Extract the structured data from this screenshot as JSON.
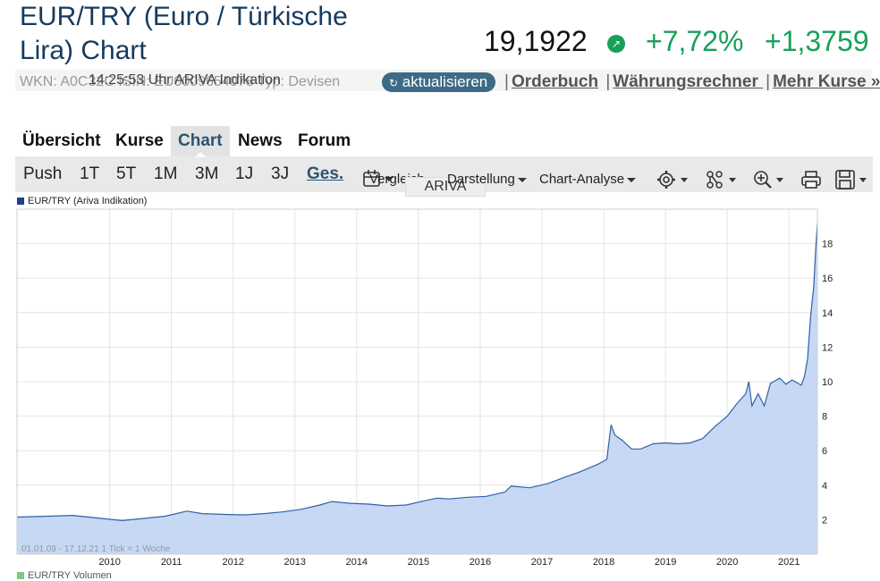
{
  "header": {
    "title": "EUR/TRY (Euro / Türkische Lira) Chart",
    "price": "19,1922",
    "change_pct": "+7,72%",
    "change_abs": "+1,3759",
    "accent_green": "#18a05a",
    "title_color": "#163a5c"
  },
  "infobar": {
    "wkn_text": "WKN: A0C32C ISIN: EU0009654078 Typ: Devisen",
    "time_text": "14:25:53 Uhr ARIVA Indikation",
    "refresh_label": "aktualisieren",
    "links": [
      "Orderbuch",
      "Währungsrechner ",
      "Mehr Kurse »"
    ]
  },
  "tabs": [
    "Übersicht",
    "Kurse",
    "Chart",
    "News",
    "Forum"
  ],
  "toolbar": {
    "ranges": [
      "Push",
      "1T",
      "5T",
      "1M",
      "3M",
      "1J",
      "3J",
      "Ges."
    ],
    "active_range": "Ges.",
    "vergleich": "Vergleich",
    "darstellung": "Darstellung",
    "analyse": "Chart-Analyse",
    "source_tag": "ARIVA"
  },
  "chart_legend": {
    "top": "EUR/TRY (Ariva Indikation)",
    "bottom": "EUR/TRY Volumen",
    "period": "01.01.09 - 17.12.21",
    "tick": "1 Tick = 1 Woche"
  },
  "chart_data": {
    "type": "area",
    "series": [
      {
        "name": "EUR/TRY (Ariva Indikation)",
        "x": [
          2009.0,
          2009.5,
          2009.9,
          2010.3,
          2010.7,
          2011.0,
          2011.4,
          2011.75,
          2012.0,
          2012.4,
          2012.7,
          2013.0,
          2013.3,
          2013.6,
          2013.9,
          2014.1,
          2014.4,
          2014.7,
          2015.0,
          2015.3,
          2015.6,
          2015.8,
          2016.0,
          2016.3,
          2016.6,
          2016.9,
          2017.0,
          2017.3,
          2017.6,
          2017.9,
          2018.1,
          2018.4,
          2018.55,
          2018.62,
          2018.68,
          2018.8,
          2018.95,
          2019.1,
          2019.3,
          2019.5,
          2019.7,
          2019.9,
          2020.1,
          2020.3,
          2020.5,
          2020.65,
          2020.8,
          2020.85,
          2020.9,
          2021.0,
          2021.1,
          2021.2,
          2021.35,
          2021.45,
          2021.55,
          2021.7,
          2021.75,
          2021.8,
          2021.85,
          2021.9,
          2021.93,
          2021.96
        ],
        "values": [
          2.15,
          2.2,
          2.25,
          2.1,
          1.95,
          2.05,
          2.2,
          2.5,
          2.35,
          2.3,
          2.28,
          2.35,
          2.45,
          2.6,
          2.85,
          3.05,
          2.95,
          2.9,
          2.8,
          2.85,
          3.1,
          3.25,
          3.2,
          3.3,
          3.35,
          3.6,
          3.95,
          3.85,
          4.1,
          4.5,
          4.75,
          5.2,
          5.5,
          7.5,
          6.9,
          6.6,
          6.1,
          6.1,
          6.4,
          6.45,
          6.4,
          6.45,
          6.7,
          7.4,
          8.0,
          8.7,
          9.3,
          10.0,
          8.6,
          9.3,
          8.6,
          9.9,
          10.2,
          9.85,
          10.1,
          9.8,
          10.3,
          11.3,
          13.8,
          15.5,
          17.5,
          19.19
        ]
      }
    ],
    "xlim": [
      2009.0,
      2021.96
    ],
    "ylim": [
      0,
      20
    ],
    "yticks": [
      2,
      4,
      6,
      8,
      10,
      12,
      14,
      16,
      18
    ],
    "xticks": [
      2010,
      2011,
      2012,
      2013,
      2014,
      2015,
      2016,
      2017,
      2018,
      2019,
      2020,
      2021
    ],
    "grid": true,
    "line_color": "#2e62a8",
    "fill_color": "#c6d8f4"
  }
}
